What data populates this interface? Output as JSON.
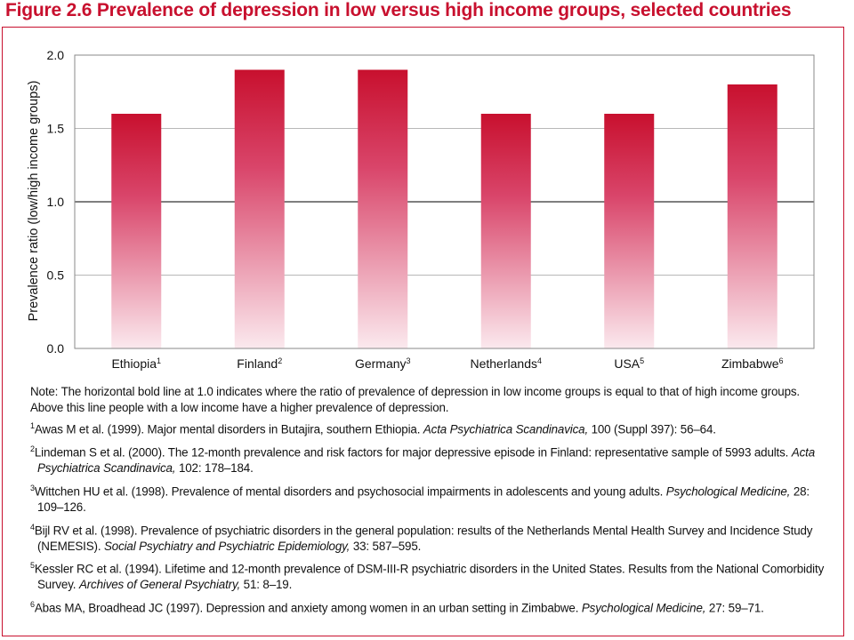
{
  "figure_title": "Figure 2.6 Prevalence of depression in low versus high income groups, selected countries",
  "chart_data": {
    "type": "bar",
    "categories": [
      "Ethiopia",
      "Finland",
      "Germany",
      "Netherlands",
      "USA",
      "Zimbabwe"
    ],
    "category_superscripts": [
      "1",
      "2",
      "3",
      "4",
      "5",
      "6"
    ],
    "values": [
      1.6,
      1.9,
      1.9,
      1.6,
      1.6,
      1.8
    ],
    "ylabel": "Prevalence ratio (low/high income groups)",
    "ylim": [
      0,
      2.0
    ],
    "yticks": [
      "0.0",
      "0.5",
      "1.0",
      "1.5",
      "2.0"
    ],
    "reference_line": 1.0,
    "bar_color_top": "#c8102e",
    "bar_color_bottom": "#fbe9ee",
    "grid": true
  },
  "note": "Note: The horizontal bold line at 1.0 indicates where the ratio of prevalence of depression in low income groups is equal to that of high income groups. Above this line people with a low income have a higher prevalence of depression.",
  "references": [
    {
      "num": "1",
      "text": "Awas M et al. (1999). Major mental disorders in Butajira, southern Ethiopia. ",
      "journal": "Acta Psychiatrica Scandinavica,",
      "cite": " 100 (Suppl 397): 56–64."
    },
    {
      "num": "2",
      "text": "Lindeman S et al. (2000). The 12-month prevalence and risk factors for major depressive episode in Finland: representative sample of 5993 adults. ",
      "journal": "Acta Psychiatrica Scandinavica,",
      "cite": " 102: 178–184."
    },
    {
      "num": "3",
      "text": "Wittchen HU et al. (1998). Prevalence of mental disorders and psychosocial impairments in adolescents and young adults. ",
      "journal": "Psychological Medicine,",
      "cite": " 28: 109–126."
    },
    {
      "num": "4",
      "text": "Bijl RV et al. (1998). Prevalence of psychiatric disorders in the general population: results of the Netherlands Mental Health Survey and Incidence Study (NEMESIS). ",
      "journal": "Social Psychiatry and Psychiatric Epidemiology,",
      "cite": " 33: 587–595."
    },
    {
      "num": "5",
      "text": "Kessler RC et al. (1994). Lifetime and 12-month prevalence of DSM-III-R psychiatric disorders in the United States. Results from the National Comorbidity Survey. ",
      "journal": "Archives of General Psychiatry,",
      "cite": " 51: 8–19."
    },
    {
      "num": "6",
      "text": "Abas MA, Broadhead JC (1997). Depression and anxiety among women in an urban setting in Zimbabwe. ",
      "journal": "Psychological Medicine,",
      "cite": " 27: 59–71."
    }
  ]
}
